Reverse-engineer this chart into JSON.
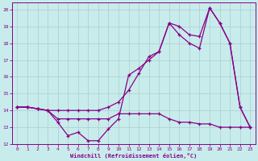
{
  "xlabel": "Windchill (Refroidissement éolien,°C)",
  "bg_color": "#c8ecec",
  "line_color": "#880088",
  "grid_color": "#aacccc",
  "grid_minor_color": "#bbdddd",
  "xlim": [
    -0.5,
    23.5
  ],
  "ylim": [
    12,
    20.4
  ],
  "xticks": [
    0,
    1,
    2,
    3,
    4,
    5,
    6,
    7,
    8,
    9,
    10,
    11,
    12,
    13,
    14,
    15,
    16,
    17,
    18,
    19,
    20,
    21,
    22,
    23
  ],
  "yticks": [
    12,
    13,
    14,
    15,
    16,
    17,
    18,
    19,
    20
  ],
  "line1_x": [
    0,
    1,
    2,
    3,
    4,
    5,
    6,
    7,
    8,
    9,
    10,
    11,
    12,
    13,
    14,
    15,
    16,
    17,
    18,
    19,
    20,
    21,
    22,
    23
  ],
  "line1_y": [
    14.2,
    14.2,
    14.1,
    14.0,
    13.3,
    12.5,
    12.7,
    12.2,
    12.2,
    12.9,
    13.5,
    16.1,
    16.5,
    17.0,
    17.5,
    19.2,
    19.0,
    18.5,
    18.4,
    20.1,
    19.2,
    18.0,
    14.2,
    13.0
  ],
  "line2_x": [
    0,
    1,
    2,
    3,
    4,
    5,
    6,
    7,
    8,
    9,
    10,
    11,
    12,
    13,
    14,
    15,
    16,
    17,
    18,
    19,
    20,
    21,
    22,
    23
  ],
  "line2_y": [
    14.2,
    14.2,
    14.1,
    14.0,
    13.5,
    13.5,
    13.5,
    13.5,
    13.5,
    13.5,
    13.8,
    13.8,
    13.8,
    13.8,
    13.8,
    13.5,
    13.3,
    13.3,
    13.2,
    13.2,
    13.0,
    13.0,
    13.0,
    13.0
  ],
  "line3_x": [
    0,
    1,
    2,
    3,
    4,
    5,
    6,
    7,
    8,
    9,
    10,
    11,
    12,
    13,
    14,
    15,
    16,
    17,
    18,
    19,
    20,
    21,
    22,
    23
  ],
  "line3_y": [
    14.2,
    14.2,
    14.1,
    14.0,
    14.0,
    14.0,
    14.0,
    14.0,
    14.0,
    14.2,
    14.5,
    15.2,
    16.2,
    17.2,
    17.5,
    19.2,
    18.5,
    18.0,
    17.7,
    20.1,
    19.2,
    18.0,
    14.2,
    13.0
  ]
}
